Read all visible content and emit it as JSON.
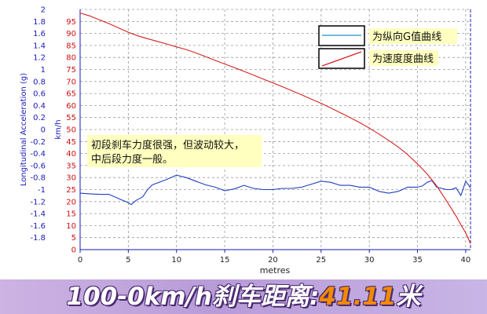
{
  "chart_data": {
    "type": "line",
    "xlabel": "metres",
    "ylabel_left": "Longitudinal Acceleration (g)",
    "ylabel_right": "km/h",
    "xlim": [
      0,
      40.5
    ],
    "ylim_left": [
      -2,
      2
    ],
    "ylim_right": [
      0,
      100
    ],
    "x_ticks": [
      0,
      5,
      10,
      15,
      20,
      25,
      30,
      35,
      40
    ],
    "y_ticks_left": [
      2,
      1.8,
      1.6,
      1.4,
      1.2,
      1,
      0.8,
      0.6,
      0.4,
      0.2,
      0,
      -0.2,
      -0.4,
      -0.6,
      -0.8,
      -1,
      -1.2,
      -1.4,
      -1.6,
      -1.8
    ],
    "y_ticks_right": [
      95,
      90,
      85,
      80,
      75,
      70,
      65,
      60,
      55,
      50,
      45,
      40,
      35,
      30,
      25,
      20,
      15,
      10,
      5,
      0
    ],
    "grid": true,
    "legend_position": "top-right",
    "series": [
      {
        "name": "为纵向G值曲线",
        "axis": "left",
        "color": "#1f3fbf",
        "x": [
          0,
          1,
          2,
          3,
          4,
          5,
          5.3,
          5.8,
          6.5,
          7,
          7.5,
          8,
          9,
          10,
          11,
          12,
          13,
          14,
          15,
          16,
          17,
          18,
          19,
          20,
          21,
          22,
          23,
          24,
          25,
          26,
          27,
          28,
          29,
          30,
          31,
          32,
          33,
          34,
          35,
          35.5,
          36,
          36.5,
          37,
          38,
          38.5,
          39,
          39.5,
          40,
          40.5
        ],
        "y": [
          -1.06,
          -1.07,
          -1.08,
          -1.08,
          -1.15,
          -1.22,
          -1.25,
          -1.18,
          -1.12,
          -1.0,
          -0.92,
          -0.89,
          -0.83,
          -0.76,
          -0.8,
          -0.86,
          -0.92,
          -0.96,
          -1.02,
          -0.99,
          -0.93,
          -0.98,
          -1.0,
          -1.0,
          -0.98,
          -0.98,
          -0.96,
          -0.91,
          -0.86,
          -0.88,
          -0.93,
          -0.93,
          -0.96,
          -0.96,
          -1.03,
          -1.06,
          -1.03,
          -0.96,
          -0.96,
          -0.94,
          -0.88,
          -0.85,
          -0.96,
          -1.0,
          -1.0,
          -0.97,
          -1.1,
          -0.86,
          -0.97
        ]
      },
      {
        "name": "为速度度曲线",
        "axis": "right",
        "color": "#d62020",
        "x": [
          0,
          1,
          2,
          3,
          4,
          5,
          6,
          7,
          8,
          9,
          10,
          11,
          12,
          13,
          14,
          15,
          16,
          17,
          18,
          19,
          20,
          21,
          22,
          23,
          24,
          25,
          26,
          27,
          28,
          29,
          30,
          31,
          32,
          33,
          34,
          35,
          36,
          37,
          38,
          38.5,
          39,
          39.5,
          40,
          40.5
        ],
        "y": [
          98.5,
          97.3,
          95.7,
          94.1,
          92.3,
          90.5,
          89.0,
          87.8,
          86.7,
          85.6,
          84.4,
          83.3,
          81.9,
          80.4,
          78.8,
          77.3,
          75.8,
          74.2,
          72.6,
          71.0,
          69.4,
          67.8,
          66.1,
          64.4,
          62.6,
          60.9,
          59.0,
          57.0,
          55.0,
          52.9,
          50.6,
          48.1,
          45.5,
          42.7,
          39.5,
          35.7,
          31.5,
          26.5,
          20.4,
          17.2,
          14.0,
          10.4,
          7.0,
          2.5
        ]
      }
    ],
    "annotation": {
      "line1": "初段刹车力度很强，但波动较大，",
      "line2": "中后段力度一般。"
    }
  },
  "banner": {
    "prefix": "100-0km/h刹车距离:",
    "value": "41.11",
    "unit": "米"
  },
  "colors": {
    "annotation_bg": "#ffffbf",
    "grid": "#9a9a9a",
    "axis": "#1a1ab8"
  }
}
